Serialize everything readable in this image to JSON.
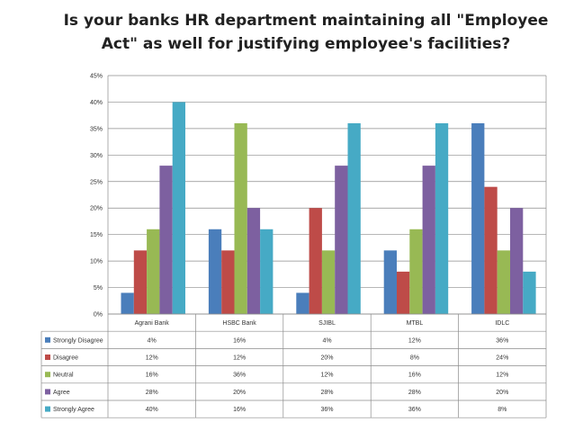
{
  "chart_data": {
    "type": "bar",
    "title_line1": "Is your banks HR department maintaining all \"Employee",
    "title_line2": "Act\" as well for justifying employee's facilities?",
    "categories": [
      "Agrani Bank",
      "HSBC Bank",
      "SJIBL",
      "MTBL",
      "IDLC"
    ],
    "yticks": [
      "0%",
      "5%",
      "10%",
      "15%",
      "20%",
      "25%",
      "30%",
      "35%",
      "40%",
      "45%"
    ],
    "ylim": [
      0,
      45
    ],
    "grid": true,
    "legend": "data-table",
    "series": [
      {
        "name": "Strongly Disagree",
        "color": "#4a7ebb",
        "values": [
          4,
          16,
          4,
          12,
          36
        ],
        "labels": [
          "4%",
          "16%",
          "4%",
          "12%",
          "36%"
        ]
      },
      {
        "name": "Disagree",
        "color": "#be4b48",
        "values": [
          12,
          12,
          20,
          8,
          24
        ],
        "labels": [
          "12%",
          "12%",
          "20%",
          "8%",
          "24%"
        ]
      },
      {
        "name": "Neutral",
        "color": "#98b954",
        "values": [
          16,
          36,
          12,
          16,
          12
        ],
        "labels": [
          "16%",
          "36%",
          "12%",
          "16%",
          "12%"
        ]
      },
      {
        "name": "Agree",
        "color": "#7d60a0",
        "values": [
          28,
          20,
          28,
          28,
          20
        ],
        "labels": [
          "28%",
          "20%",
          "28%",
          "28%",
          "20%"
        ]
      },
      {
        "name": "Strongly Agree",
        "color": "#46aac5",
        "values": [
          40,
          16,
          36,
          36,
          8
        ],
        "labels": [
          "40%",
          "16%",
          "36%",
          "36%",
          "8%"
        ]
      }
    ]
  }
}
